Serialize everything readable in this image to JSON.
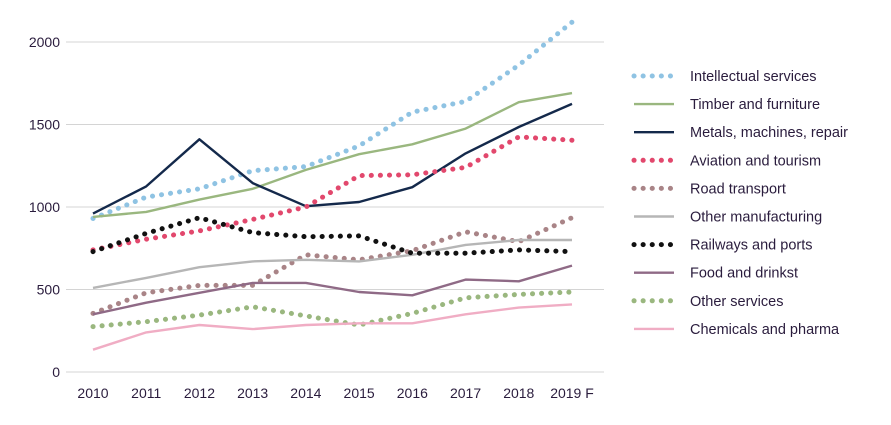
{
  "chart_data": {
    "type": "line",
    "categories": [
      "2010",
      "2011",
      "2012",
      "2013",
      "2014",
      "2015",
      "2016",
      "2017",
      "2018",
      "2019 F"
    ],
    "ylim": [
      0,
      2100
    ],
    "yticks": [
      0,
      500,
      1000,
      1500,
      2000
    ],
    "grid": true,
    "legend_position": "right",
    "series": [
      {
        "name": "Intellectual services",
        "color": "#8fc3e3",
        "style": "dotted",
        "values": [
          930,
          1060,
          1110,
          1220,
          1245,
          1370,
          1575,
          1640,
          1860,
          2120
        ]
      },
      {
        "name": "Timber and furniture",
        "color": "#9ab77f",
        "style": "solid",
        "values": [
          940,
          970,
          1045,
          1110,
          1225,
          1320,
          1380,
          1475,
          1635,
          1690
        ]
      },
      {
        "name": "Metals, machines, repair",
        "color": "#14294b",
        "style": "solid",
        "values": [
          960,
          1125,
          1410,
          1145,
          1005,
          1030,
          1120,
          1325,
          1485,
          1625
        ]
      },
      {
        "name": "Aviation and tourism",
        "color": "#e2486d",
        "style": "dotted",
        "values": [
          740,
          805,
          855,
          925,
          1000,
          1190,
          1195,
          1240,
          1425,
          1405
        ]
      },
      {
        "name": "Road transport",
        "color": "#a98487",
        "style": "dotted",
        "values": [
          355,
          480,
          525,
          525,
          710,
          680,
          735,
          850,
          790,
          935
        ]
      },
      {
        "name": "Other manufacturing",
        "color": "#b6b6b6",
        "style": "solid",
        "values": [
          510,
          570,
          635,
          670,
          680,
          670,
          710,
          770,
          800,
          800
        ]
      },
      {
        "name": "Railways and ports",
        "color": "#111111",
        "style": "dotted",
        "values": [
          730,
          840,
          935,
          845,
          820,
          825,
          720,
          720,
          740,
          730
        ]
      },
      {
        "name": "Food and drinkst",
        "color": "#8f6a86",
        "style": "solid",
        "values": [
          350,
          420,
          480,
          540,
          540,
          485,
          465,
          560,
          550,
          645
        ]
      },
      {
        "name": "Other services",
        "color": "#9ab77f",
        "style": "dotted",
        "values": [
          275,
          305,
          345,
          395,
          340,
          285,
          355,
          450,
          470,
          485
        ]
      },
      {
        "name": "Chemicals and pharma",
        "color": "#f0adc4",
        "style": "solid",
        "values": [
          135,
          240,
          285,
          260,
          285,
          295,
          295,
          350,
          390,
          410
        ]
      }
    ]
  }
}
